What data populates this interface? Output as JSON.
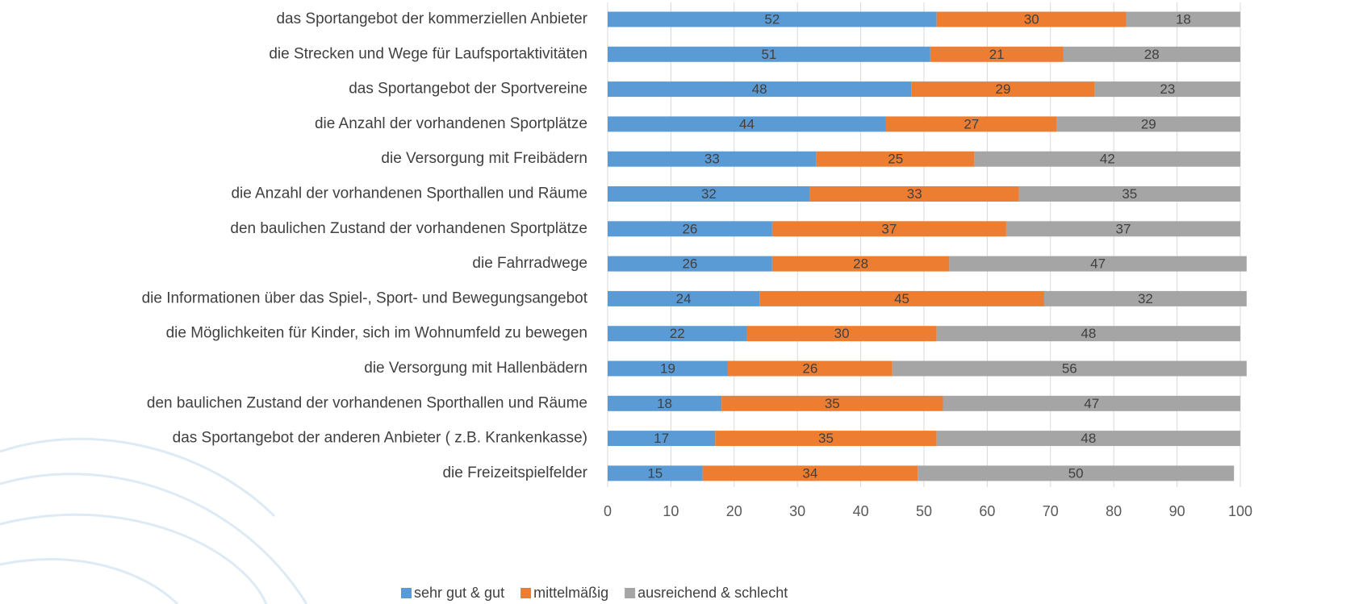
{
  "chart_data": {
    "type": "stacked-bar-horizontal",
    "categories": [
      "das Sportangebot der kommerziellen Anbieter",
      "die Strecken und Wege für Laufsportaktivitäten",
      "das Sportangebot der Sportvereine",
      "die Anzahl der vorhandenen Sportplätze",
      "die Versorgung mit Freibädern",
      "die Anzahl der vorhandenen Sporthallen und Räume",
      "den baulichen Zustand der vorhandenen Sportplätze",
      "die Fahrradwege",
      "die Informationen über das Spiel-, Sport- und Bewegungsangebot",
      "die Möglichkeiten für Kinder, sich im Wohnumfeld zu bewegen",
      "die Versorgung mit Hallenbädern",
      "den baulichen Zustand der vorhandenen Sporthallen und Räume",
      "das Sportangebot der anderen Anbieter ( z.B. Krankenkasse)",
      "die Freizeitspielfelder"
    ],
    "series": [
      {
        "name": "sehr gut & gut",
        "color": "#5b9bd5",
        "values": [
          52,
          51,
          48,
          44,
          33,
          32,
          26,
          26,
          24,
          22,
          19,
          18,
          17,
          15
        ]
      },
      {
        "name": "mittelmäßig",
        "color": "#ed7d31",
        "values": [
          30,
          21,
          29,
          27,
          25,
          33,
          37,
          28,
          45,
          30,
          26,
          35,
          35,
          34
        ]
      },
      {
        "name": "ausreichend & schlecht",
        "color": "#a5a5a5",
        "values": [
          18,
          28,
          23,
          29,
          42,
          35,
          37,
          47,
          32,
          48,
          56,
          47,
          48,
          50
        ]
      }
    ],
    "xlim": [
      0,
      100
    ],
    "xticks": [
      0,
      10,
      20,
      30,
      40,
      50,
      60,
      70,
      80,
      90,
      100
    ],
    "grid": true,
    "legend": "bottom",
    "data_labels": true
  }
}
